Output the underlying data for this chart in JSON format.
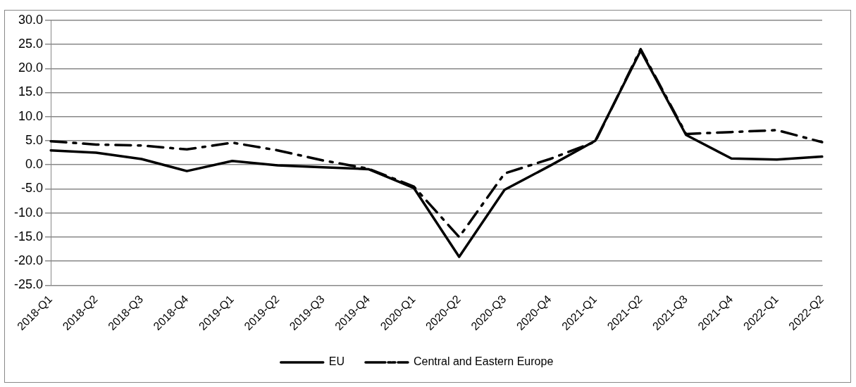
{
  "chart_data": {
    "type": "line",
    "categories": [
      "2018-Q1",
      "2018-Q2",
      "2018-Q3",
      "2018-Q4",
      "2019-Q1",
      "2019-Q2",
      "2019-Q3",
      "2019-Q4",
      "2020-Q1",
      "2020-Q2",
      "2020-Q3",
      "2020-Q4",
      "2021-Q1",
      "2021-Q2",
      "2021-Q3",
      "2021-Q4",
      "2022-Q1",
      "2022-Q2"
    ],
    "series": [
      {
        "name": "EU",
        "color": "#000000",
        "line_style": "solid",
        "values": [
          3.0,
          2.5,
          1.2,
          -1.3,
          0.8,
          -0.1,
          -0.5,
          -0.9,
          -4.8,
          -19.1,
          -5.2,
          -0.2,
          5.0,
          23.7,
          6.2,
          1.3,
          1.1,
          1.7
        ]
      },
      {
        "name": "Central and Eastern Europe",
        "color": "#000000",
        "line_style": "dashed",
        "values": [
          4.9,
          4.2,
          4.0,
          3.2,
          4.6,
          3.0,
          0.9,
          -0.8,
          -4.5,
          -15.0,
          -1.8,
          1.2,
          4.8,
          24.0,
          6.4,
          6.8,
          7.2,
          4.7
        ]
      }
    ],
    "ylim": [
      -25,
      30
    ],
    "yticks": [
      {
        "value": -25,
        "label": "-25.0"
      },
      {
        "value": -20,
        "label": "-20.0"
      },
      {
        "value": -15,
        "label": "-15.0"
      },
      {
        "value": -10,
        "label": "-10.0"
      },
      {
        "value": -5,
        "label": "-5.0"
      },
      {
        "value": 0,
        "label": "0.0"
      },
      {
        "value": 5,
        "label": "5.0"
      },
      {
        "value": 10,
        "label": "10.0"
      },
      {
        "value": 15,
        "label": "15.0"
      },
      {
        "value": 20,
        "label": "20.0"
      },
      {
        "value": 25,
        "label": "25.0"
      },
      {
        "value": 30,
        "label": "30.0"
      }
    ],
    "grid": "y",
    "legend": "bottom",
    "marker": "none"
  }
}
